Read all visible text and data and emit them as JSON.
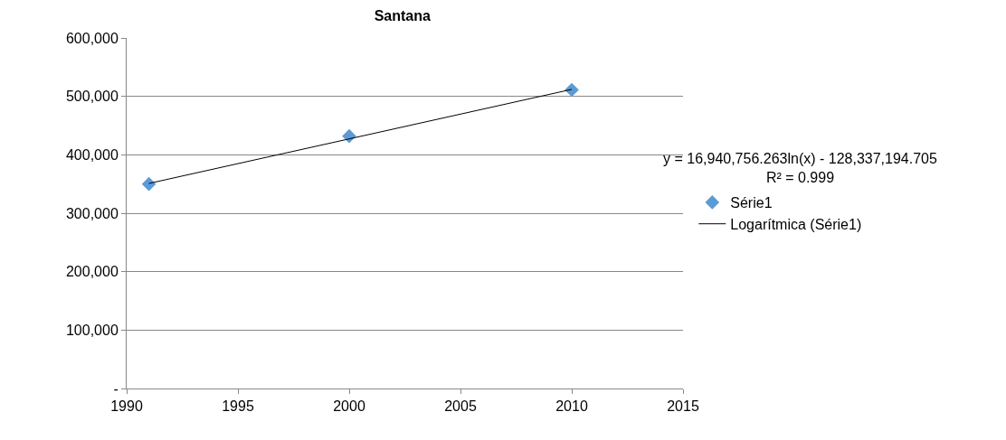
{
  "chart_data": {
    "type": "scatter",
    "title": "Santana",
    "series": [
      {
        "name": "Série1",
        "color": "#5b9bd5",
        "x": [
          1991,
          2000,
          2010
        ],
        "values": [
          350000,
          432000,
          511000
        ],
        "marker": "diamond"
      },
      {
        "name": "Logarítmica (Série1)",
        "type": "line",
        "color": "#000000",
        "x": [
          1991,
          2010
        ],
        "values": [
          351000,
          512000
        ],
        "line_style": "solid"
      }
    ],
    "xlim": [
      1990,
      2015
    ],
    "xticks": [
      1990,
      1995,
      2000,
      2005,
      2010,
      2015
    ],
    "ylim": [
      0,
      600000
    ],
    "yticks": [
      {
        "value": 0,
        "label": "-"
      },
      {
        "value": 100000,
        "label": "100,000"
      },
      {
        "value": 200000,
        "label": "200,000"
      },
      {
        "value": 300000,
        "label": "300,000"
      },
      {
        "value": 400000,
        "label": "400,000"
      },
      {
        "value": 500000,
        "label": "500,000"
      },
      {
        "value": 600000,
        "label": "600,000"
      }
    ],
    "grid": "y",
    "legend": "right",
    "annotations": [
      "y = 16,940,756.263ln(x) - 128,337,194.705\nR² = 0.999"
    ]
  }
}
